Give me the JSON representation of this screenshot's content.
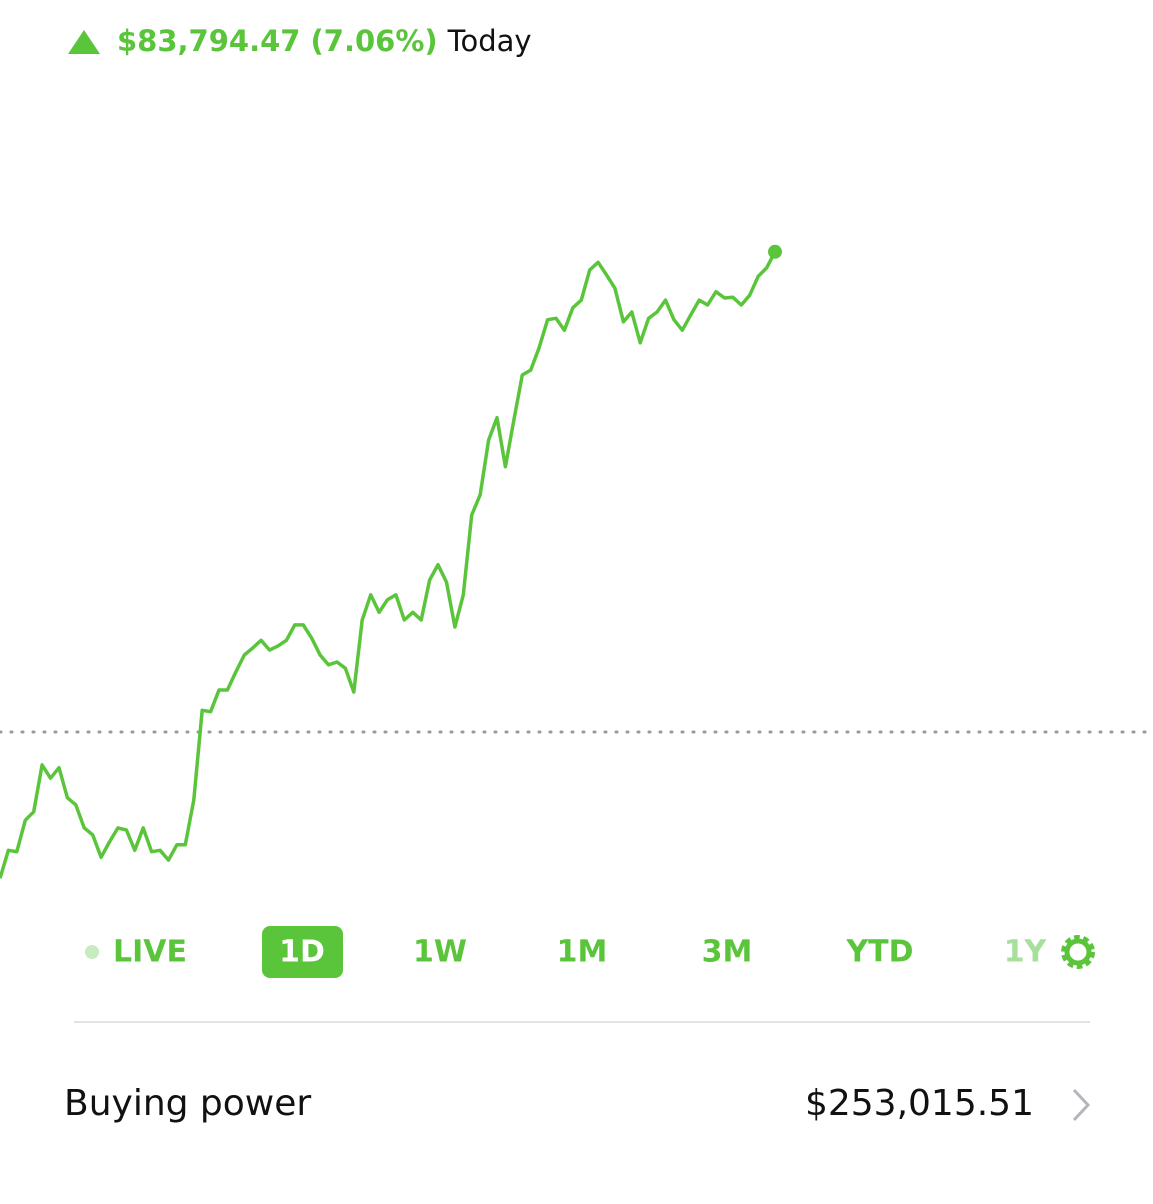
{
  "header": {
    "change": "$83,794.47 (7.06%)",
    "period": "Today"
  },
  "chart_data": {
    "type": "line",
    "color": "#5ac53b",
    "values": [
      3.1,
      7.1,
      6.9,
      11.4,
      12.6,
      19.3,
      17.4,
      18.9,
      14.6,
      13.6,
      10.3,
      9.3,
      6.1,
      8.3,
      10.3,
      10,
      7.1,
      10.3,
      6.9,
      7.1,
      5.7,
      7.9,
      7.9,
      14.3,
      27.1,
      26.9,
      30,
      30,
      32.6,
      35,
      36,
      37.1,
      35.7,
      36.3,
      37.1,
      39.3,
      39.3,
      37.4,
      35,
      33.6,
      34,
      33.1,
      29.7,
      40,
      43.6,
      41.1,
      42.9,
      43.6,
      40,
      41.1,
      40,
      45.7,
      47.9,
      45.4,
      39,
      43.6,
      55,
      57.9,
      65.7,
      68.9,
      61.9,
      68.6,
      75,
      75.7,
      78.9,
      82.9,
      83.1,
      81.4,
      84.6,
      85.7,
      90,
      91.1,
      89.3,
      87.4,
      82.6,
      84,
      79.6,
      83.1,
      84,
      85.7,
      82.9,
      81.4,
      83.6,
      85.7,
      85,
      86.9,
      86,
      86.1,
      85,
      86.4,
      89.1,
      90.3,
      92.6
    ],
    "ylim": [
      0,
      100
    ],
    "baseline": 24
  },
  "ranges": [
    "LIVE",
    "1D",
    "1W",
    "1M",
    "3M",
    "YTD",
    "1Y"
  ],
  "selected_range": 1,
  "buying_power": {
    "label": "Buying power",
    "value": "$253,015.51"
  }
}
